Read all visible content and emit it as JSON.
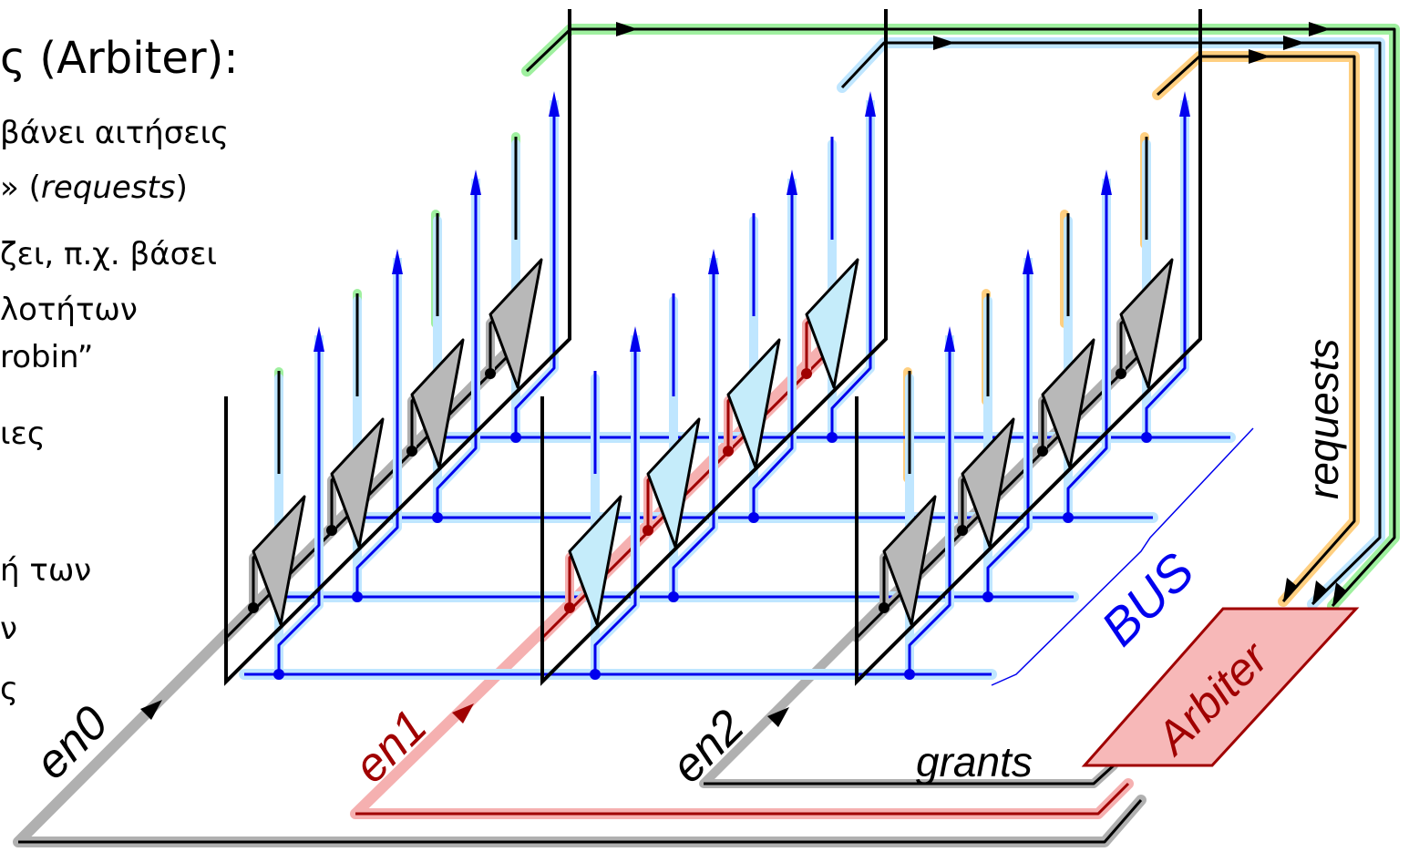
{
  "left_text": {
    "title": "ς (Arbiter):",
    "lines": [
      {
        "pre": "βάνει αιτήσεις",
        "em": "",
        "post": ""
      },
      {
        "pre": "» (",
        "em": "requests",
        "post": ")"
      },
      {
        "pre": "ζει, π.χ. βάσει",
        "em": "",
        "post": ""
      },
      {
        "pre": "λοτήτων",
        "em": "",
        "post": ""
      },
      {
        "pre": " robin”",
        "em": "",
        "post": ""
      },
      {
        "pre": "ιες",
        "em": "",
        "post": ""
      },
      {
        "pre": "ή των",
        "em": "",
        "post": ""
      },
      {
        "pre": "ν",
        "em": "",
        "post": ""
      },
      {
        "pre": "ς",
        "em": "",
        "post": ""
      }
    ]
  },
  "diagram": {
    "labels": {
      "en0": "en0",
      "en1": "en1",
      "en2": "en2",
      "grants": "grants",
      "requests": "requests",
      "bus": "BUS",
      "arbiter": "Arbiter"
    },
    "colors": {
      "en0_wire": "#000000",
      "en1_wire": "#a00000",
      "en2_wire": "#000000",
      "bus_wire": "#0000ee",
      "bus_halo": "#bfe6ff",
      "green_halo": "#9ff09f",
      "orange_halo": "#ffcf80",
      "gray_halo": "#b0b0b0",
      "red_halo": "#f5b0b0",
      "arbiter_fill": "#f7b8b8",
      "arbiter_stroke": "#a00000",
      "driver_gray": "#b8b8b8",
      "driver_blue": "#c5ecfa"
    }
  }
}
